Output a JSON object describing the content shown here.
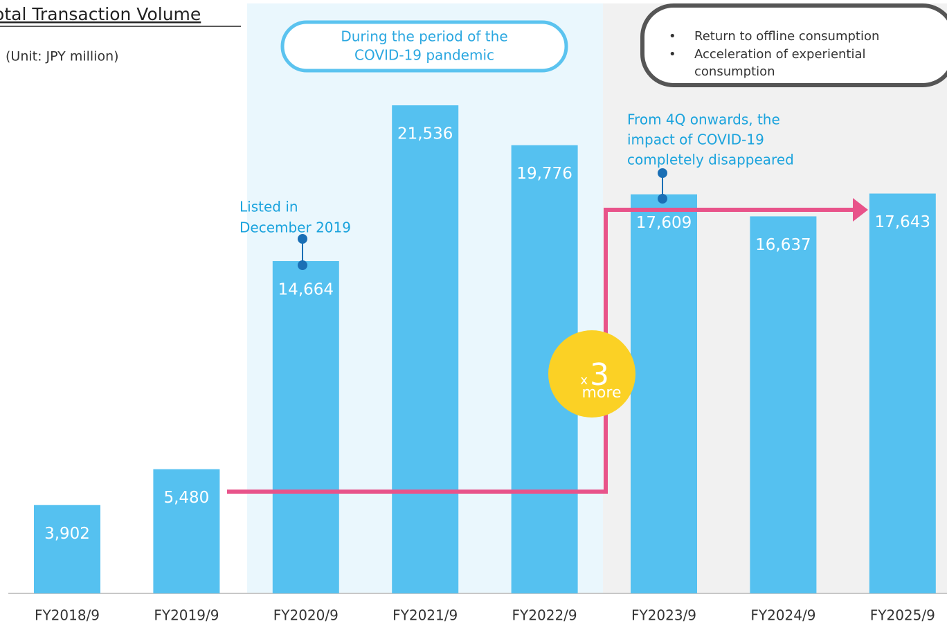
{
  "chart_data": {
    "type": "bar",
    "title": "Total Transaction Volume",
    "subtitle": "(Unit: JPY million)",
    "categories": [
      "FY2018/9",
      "FY2019/9",
      "FY2020/9",
      "FY2021/9",
      "FY2022/9",
      "FY2023/9",
      "FY2024/9",
      "FY2025/9"
    ],
    "values": [
      3902,
      5480,
      14664,
      21536,
      19776,
      17609,
      16637,
      17643
    ],
    "value_labels": [
      "3,902",
      "5,480",
      "14,664",
      "21,536",
      "19,776",
      "17,609",
      "16,637",
      "17,643"
    ],
    "color": "#55c1f0",
    "ylim": [
      0,
      26000
    ],
    "annotations": {
      "covid_period": [
        "During the period of the",
        "COVID-19 pandemic"
      ],
      "post_covid": [
        "Return to offline consumption",
        "Acceleration of experiential",
        "consumption"
      ],
      "listed": [
        "Listed in",
        "December 2019"
      ],
      "fourth_quarter": [
        "From 4Q onwards, the",
        "impact of COVID-19",
        "completely disappeared"
      ],
      "growth": [
        "x",
        "3",
        "more"
      ]
    }
  }
}
